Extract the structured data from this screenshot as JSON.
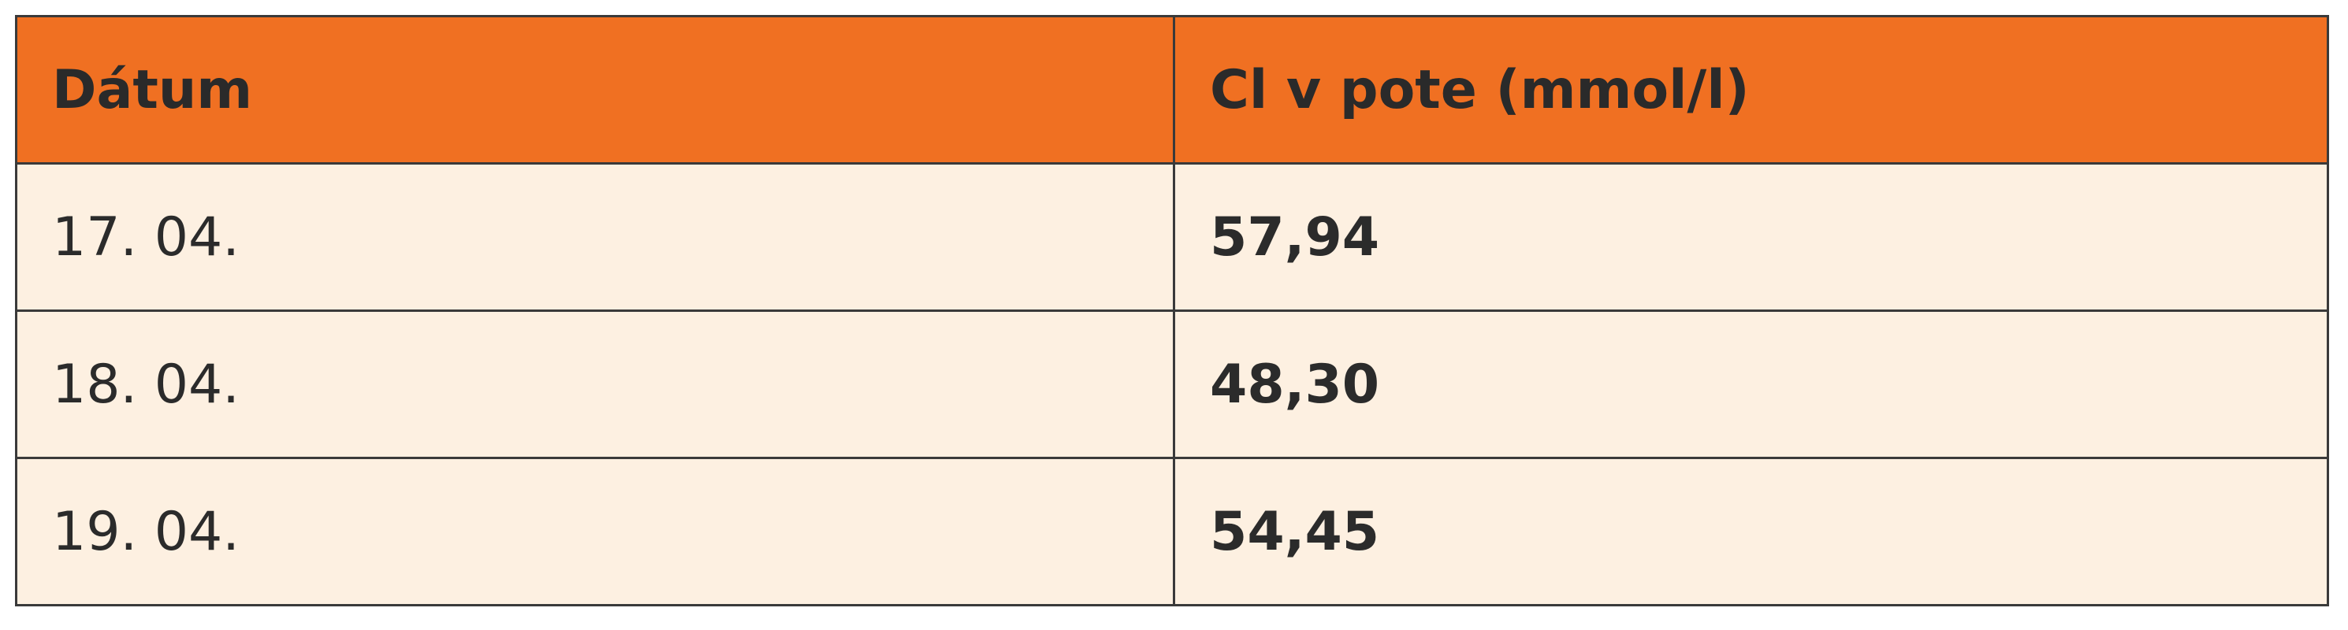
{
  "table": {
    "header": [
      "Dátum",
      "Cl v pote (mmol/l)"
    ],
    "rows": [
      [
        "17. 04.",
        "57,94"
      ],
      [
        "18. 04.",
        "48,30"
      ],
      [
        "19. 04.",
        "54,45"
      ]
    ]
  }
}
